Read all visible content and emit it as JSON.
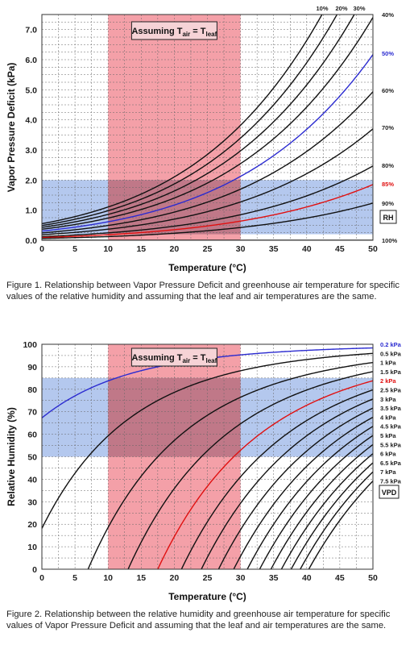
{
  "figures": [
    {
      "caption": "Figure 1. Relationship between Vapor Pressure Deficit and greenhouse air temperature for specific values of the relative humidity and assuming that the leaf and air temperatures are the same.",
      "note": "Assuming Tair = Tleaf",
      "legend_box_label": "RH"
    },
    {
      "caption": "Figure 2. Relationship between the relative humidity and greenhouse air temperature for specific values of Vapor Pressure Deficit and assuming that the leaf and air temperatures are the same.",
      "note": "Assuming Tair = Tleaf",
      "legend_box_label": "VPD"
    }
  ],
  "colors": {
    "red_zone": "#f4a0a8",
    "blue_zone": "#b4c8ee",
    "overlap": "#c07888",
    "curve": "#111111",
    "blue_curve": "#2b2bd0",
    "red_curve": "#e01010"
  },
  "chart_data": [
    {
      "type": "line",
      "xlabel": "Temperature (°C)",
      "ylabel": "Vapor Pressure Deficit (kPa)",
      "xlim": [
        0,
        50
      ],
      "ylim": [
        0,
        7.5
      ],
      "xticks": [
        0,
        5,
        10,
        15,
        20,
        25,
        30,
        35,
        40,
        45,
        50
      ],
      "yticks": [
        "0.0",
        "1.0",
        "2.0",
        "3.0",
        "4.0",
        "5.0",
        "6.0",
        "7.0"
      ],
      "grid": true,
      "shaded_regions": [
        {
          "axis": "x",
          "from": 10,
          "to": 30,
          "color": "red"
        },
        {
          "axis": "y",
          "from": 0.2,
          "to": 2.0,
          "color": "blue"
        }
      ],
      "series": [
        {
          "name": "10%",
          "rh": 10
        },
        {
          "name": "20%",
          "rh": 20
        },
        {
          "name": "30%",
          "rh": 30
        },
        {
          "name": "40%",
          "rh": 40
        },
        {
          "name": "50%",
          "rh": 50,
          "highlight": "blue"
        },
        {
          "name": "60%",
          "rh": 60
        },
        {
          "name": "70%",
          "rh": 70
        },
        {
          "name": "80%",
          "rh": 80
        },
        {
          "name": "85%",
          "rh": 85,
          "highlight": "red"
        },
        {
          "name": "90%",
          "rh": 90
        },
        {
          "name": "100%",
          "rh": 100
        }
      ]
    },
    {
      "type": "line",
      "xlabel": "Temperature (°C)",
      "ylabel": "Relative Humidity (%)",
      "xlim": [
        0,
        50
      ],
      "ylim": [
        0,
        100
      ],
      "xticks": [
        0,
        5,
        10,
        15,
        20,
        25,
        30,
        35,
        40,
        45,
        50
      ],
      "yticks": [
        0,
        10,
        20,
        30,
        40,
        50,
        60,
        70,
        80,
        90,
        100
      ],
      "grid": true,
      "shaded_regions": [
        {
          "axis": "x",
          "from": 10,
          "to": 30,
          "color": "red"
        },
        {
          "axis": "y",
          "from": 50,
          "to": 85,
          "color": "blue"
        }
      ],
      "series": [
        {
          "name": "0.2 kPa",
          "vpd": 0.2,
          "highlight": "blue"
        },
        {
          "name": "0.5 kPa",
          "vpd": 0.5
        },
        {
          "name": "1 kPa",
          "vpd": 1.0
        },
        {
          "name": "1.5 kPa",
          "vpd": 1.5
        },
        {
          "name": "2 kPa",
          "vpd": 2.0,
          "highlight": "red"
        },
        {
          "name": "2.5 kPa",
          "vpd": 2.5
        },
        {
          "name": "3 kPa",
          "vpd": 3.0
        },
        {
          "name": "3.5 kPa",
          "vpd": 3.5
        },
        {
          "name": "4 kPa",
          "vpd": 4.0
        },
        {
          "name": "4.5 kPa",
          "vpd": 4.5
        },
        {
          "name": "5 kPa",
          "vpd": 5.0
        },
        {
          "name": "5.5 kPa",
          "vpd": 5.5
        },
        {
          "name": "6 kPa",
          "vpd": 6.0
        },
        {
          "name": "6.5 kPa",
          "vpd": 6.5
        },
        {
          "name": "7 kPa",
          "vpd": 7.0
        },
        {
          "name": "7.5 kPa",
          "vpd": 7.5
        }
      ]
    }
  ]
}
